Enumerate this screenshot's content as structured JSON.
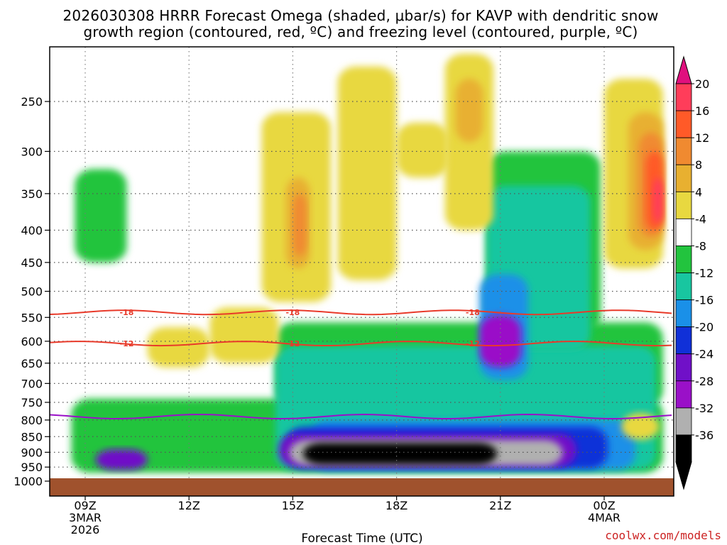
{
  "chart_data": {
    "type": "heatmap",
    "title_lines": [
      "2026030308 HRRR Forecast Omega (shaded, μbar/s) for KAVP with dendritic snow",
      "growth region (contoured, red, ºC) and freezing level (contoured, purple, ºC)"
    ],
    "xlabel": "Forecast Time (UTC)",
    "ylabel": "",
    "x_range_hours": [
      8,
      25.7
    ],
    "y_range_hpa": [
      200,
      1010
    ],
    "x_ticks": [
      {
        "hour": 9,
        "lines": [
          "09Z",
          "3MAR",
          "2026"
        ]
      },
      {
        "hour": 12,
        "lines": [
          "12Z"
        ]
      },
      {
        "hour": 15,
        "lines": [
          "15Z"
        ]
      },
      {
        "hour": 18,
        "lines": [
          "18Z"
        ]
      },
      {
        "hour": 21,
        "lines": [
          "21Z"
        ]
      },
      {
        "hour": 24,
        "lines": [
          "00Z",
          "4MAR"
        ]
      }
    ],
    "y_ticks": [
      250,
      300,
      350,
      400,
      450,
      500,
      550,
      600,
      650,
      700,
      750,
      800,
      850,
      900,
      950,
      1000
    ],
    "colorbar": {
      "levels": [
        "20",
        "16",
        "12",
        "8",
        "4",
        "-4",
        "-8",
        "-12",
        "-16",
        "-20",
        "-24",
        "-28",
        "-32",
        "-36"
      ],
      "colors": [
        "#ff3d5a",
        "#ff5a28",
        "#f08a30",
        "#e8b030",
        "#e8d840",
        "#ffffff",
        "#22c43e",
        "#18c6a0",
        "#1a90e8",
        "#1030d8",
        "#7010c8",
        "#9a10c8",
        "#b0b0b0",
        "#000000"
      ],
      "top_arrow_color": "#e0107e",
      "bottom_arrow_color": "#000000"
    },
    "contours": [
      {
        "name": "-18 C",
        "label": "-18",
        "color": "#e83a2a",
        "pressure_hpa": 540
      },
      {
        "name": "-12 C",
        "label": "-12",
        "color": "#e83a2a",
        "pressure_hpa": 605
      },
      {
        "name": "freezing level",
        "label": "",
        "color": "#9a10c8",
        "pressure_hpa": 790
      }
    ],
    "omega_regions": [
      {
        "level": "-8",
        "color": "#22c43e",
        "hours": [
          8.6,
          25.7
        ],
        "hpa": [
          740,
          970
        ]
      },
      {
        "level": "-8",
        "color": "#22c43e",
        "hours": [
          14.5,
          25.7
        ],
        "hpa": [
          560,
          760
        ]
      },
      {
        "level": "-8",
        "color": "#22c43e",
        "hours": [
          20.6,
          23.9
        ],
        "hpa": [
          300,
          580
        ]
      },
      {
        "level": "-8",
        "color": "#22c43e",
        "hours": [
          8.7,
          10.2
        ],
        "hpa": [
          320,
          450
        ]
      },
      {
        "level": "-12",
        "color": "#18c6a0",
        "hours": [
          14.5,
          25.5
        ],
        "hpa": [
          610,
          960
        ]
      },
      {
        "level": "-12",
        "color": "#18c6a0",
        "hours": [
          20.6,
          23.6
        ],
        "hpa": [
          340,
          620
        ]
      },
      {
        "level": "-16",
        "color": "#1a90e8",
        "hours": [
          15.5,
          24.9
        ],
        "hpa": [
          800,
          960
        ]
      },
      {
        "level": "-16",
        "color": "#1a90e8",
        "hours": [
          20.4,
          21.8
        ],
        "hpa": [
          470,
          690
        ]
      },
      {
        "level": "-20",
        "color": "#1030d8",
        "hours": [
          14.8,
          24.1
        ],
        "hpa": [
          820,
          955
        ]
      },
      {
        "level": "-24",
        "color": "#7010c8",
        "hours": [
          9.3,
          10.8
        ],
        "hpa": [
          890,
          960
        ]
      },
      {
        "level": "-24",
        "color": "#7010c8",
        "hours": [
          14.6,
          23.2
        ],
        "hpa": [
          840,
          950
        ]
      },
      {
        "level": "-28",
        "color": "#9a10c8",
        "hours": [
          20.4,
          21.6
        ],
        "hpa": [
          545,
          660
        ]
      },
      {
        "level": "-32",
        "color": "#b0b0b0",
        "hours": [
          14.9,
          22.8
        ],
        "hpa": [
          860,
          945
        ]
      },
      {
        "level": "-36",
        "color": "#000000",
        "hours": [
          15.3,
          20.9
        ],
        "hpa": [
          870,
          940
        ]
      },
      {
        "level": "4",
        "color": "#e8d840",
        "hours": [
          14.1,
          16.1
        ],
        "hpa": [
          260,
          520
        ]
      },
      {
        "level": "4",
        "color": "#e8d840",
        "hours": [
          16.3,
          18.0
        ],
        "hpa": [
          220,
          480
        ]
      },
      {
        "level": "4",
        "color": "#e8d840",
        "hours": [
          19.4,
          20.8
        ],
        "hpa": [
          210,
          400
        ]
      },
      {
        "level": "4",
        "color": "#e8d840",
        "hours": [
          18.0,
          19.5
        ],
        "hpa": [
          270,
          330
        ]
      },
      {
        "level": "4",
        "color": "#e8d840",
        "hours": [
          24.0,
          25.7
        ],
        "hpa": [
          230,
          460
        ]
      },
      {
        "level": "4",
        "color": "#e8d840",
        "hours": [
          12.6,
          14.6
        ],
        "hpa": [
          530,
          650
        ]
      },
      {
        "level": "4",
        "color": "#e8d840",
        "hours": [
          10.8,
          12.6
        ],
        "hpa": [
          570,
          660
        ]
      },
      {
        "level": "4",
        "color": "#e8d840",
        "hours": [
          24.5,
          25.6
        ],
        "hpa": [
          780,
          860
        ]
      },
      {
        "level": "8",
        "color": "#e8b030",
        "hours": [
          14.8,
          15.5
        ],
        "hpa": [
          330,
          460
        ]
      },
      {
        "level": "8",
        "color": "#e8b030",
        "hours": [
          19.7,
          20.5
        ],
        "hpa": [
          230,
          290
        ]
      },
      {
        "level": "8",
        "color": "#e8b030",
        "hours": [
          24.7,
          25.7
        ],
        "hpa": [
          260,
          430
        ]
      },
      {
        "level": "12",
        "color": "#f08a30",
        "hours": [
          15.0,
          15.4
        ],
        "hpa": [
          350,
          440
        ]
      },
      {
        "level": "12",
        "color": "#f08a30",
        "hours": [
          25.0,
          25.7
        ],
        "hpa": [
          280,
          410
        ]
      },
      {
        "level": "16",
        "color": "#ff5a28",
        "hours": [
          25.2,
          25.7
        ],
        "hpa": [
          300,
          400
        ]
      },
      {
        "level": "20",
        "color": "#ff3d5a",
        "hours": [
          25.4,
          25.7
        ],
        "hpa": [
          330,
          390
        ]
      }
    ],
    "ground_color": "#a0522d"
  },
  "credit": "coolwx.com/models"
}
